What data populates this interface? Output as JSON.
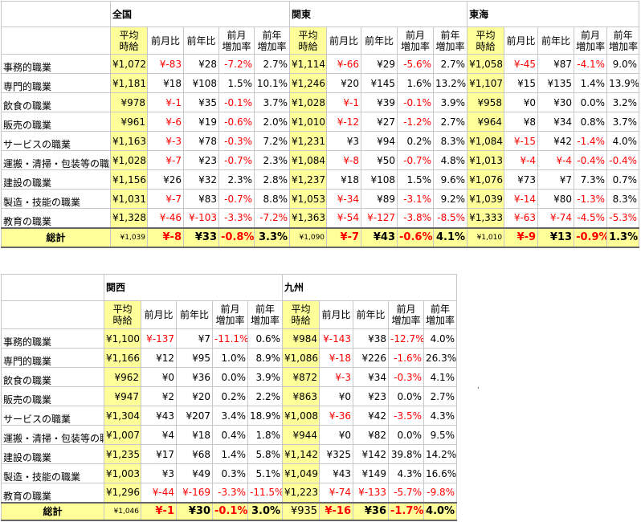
{
  "colors": {
    "highlight": "#ffff99",
    "negative": "#ff0000",
    "grid": "#c8c8c8"
  },
  "column_headers": {
    "avg": [
      "平均",
      "時給"
    ],
    "mom": "前月比",
    "yoy": "前年比",
    "mom_rate": [
      "前月",
      "増加率"
    ],
    "yoy_rate": [
      "前年",
      "増加率"
    ]
  },
  "categories": [
    "事務的職業",
    "専門的職業",
    "飲食の職業",
    "販売の職業",
    "サービスの職業",
    "運搬・清掃・包装等の職業",
    "建設の職業",
    "製造・技能の職業",
    "教育の職業"
  ],
  "total_label": "総計",
  "top_table": {
    "regions": [
      {
        "name": "全国",
        "rows": [
          [
            "¥1,072",
            "¥-83",
            "¥28",
            "-7.2%",
            "2.7%"
          ],
          [
            "¥1,181",
            "¥18",
            "¥108",
            "1.5%",
            "10.1%"
          ],
          [
            "¥978",
            "¥-1",
            "¥35",
            "-0.1%",
            "3.7%"
          ],
          [
            "¥961",
            "¥-6",
            "¥19",
            "-0.6%",
            "2.0%"
          ],
          [
            "¥1,163",
            "¥-3",
            "¥78",
            "-0.3%",
            "7.2%"
          ],
          [
            "¥1,028",
            "¥-7",
            "¥23",
            "-0.7%",
            "2.3%"
          ],
          [
            "¥1,156",
            "¥26",
            "¥32",
            "2.3%",
            "2.8%"
          ],
          [
            "¥1,031",
            "¥-7",
            "¥83",
            "-0.7%",
            "8.8%"
          ],
          [
            "¥1,328",
            "¥-46",
            "¥-103",
            "-3.3%",
            "-7.2%"
          ]
        ],
        "total": [
          "¥1,039",
          "¥-8",
          "¥33",
          "-0.8%",
          "3.3%"
        ]
      },
      {
        "name": "関東",
        "rows": [
          [
            "¥1,114",
            "¥-66",
            "¥29",
            "-5.6%",
            "2.7%"
          ],
          [
            "¥1,246",
            "¥20",
            "¥145",
            "1.6%",
            "13.2%"
          ],
          [
            "¥1,028",
            "¥-1",
            "¥39",
            "-0.1%",
            "3.9%"
          ],
          [
            "¥1,010",
            "¥-12",
            "¥27",
            "-1.2%",
            "2.7%"
          ],
          [
            "¥1,231",
            "¥3",
            "¥94",
            "0.2%",
            "8.3%"
          ],
          [
            "¥1,084",
            "¥-8",
            "¥50",
            "-0.7%",
            "4.8%"
          ],
          [
            "¥1,237",
            "¥18",
            "¥108",
            "1.5%",
            "9.6%"
          ],
          [
            "¥1,053",
            "¥-34",
            "¥89",
            "-3.1%",
            "9.2%"
          ],
          [
            "¥1,363",
            "¥-54",
            "¥-127",
            "-3.8%",
            "-8.5%"
          ]
        ],
        "total": [
          "¥1,090",
          "¥-7",
          "¥43",
          "-0.6%",
          "4.1%"
        ]
      },
      {
        "name": "東海",
        "rows": [
          [
            "¥1,058",
            "¥-45",
            "¥87",
            "-4.1%",
            "9.0%"
          ],
          [
            "¥1,107",
            "¥15",
            "¥135",
            "1.4%",
            "13.9%"
          ],
          [
            "¥958",
            "¥0",
            "¥30",
            "0.0%",
            "3.2%"
          ],
          [
            "¥964",
            "¥8",
            "¥34",
            "0.8%",
            "3.7%"
          ],
          [
            "¥1,084",
            "¥-15",
            "¥42",
            "-1.4%",
            "4.0%"
          ],
          [
            "¥1,013",
            "¥-4",
            "¥-4",
            "-0.4%",
            "-0.4%"
          ],
          [
            "¥1,076",
            "¥73",
            "¥7",
            "7.3%",
            "0.7%"
          ],
          [
            "¥1,039",
            "¥-14",
            "¥80",
            "-1.3%",
            "8.3%"
          ],
          [
            "¥1,333",
            "¥-63",
            "¥-74",
            "-4.5%",
            "-5.3%"
          ]
        ],
        "total": [
          "¥1,010",
          "¥-9",
          "¥13",
          "-0.9%",
          "1.3%"
        ]
      }
    ]
  },
  "bottom_table": {
    "regions": [
      {
        "name": "関西",
        "rows": [
          [
            "¥1,100",
            "¥-137",
            "¥7",
            "-11.1%",
            "0.6%"
          ],
          [
            "¥1,166",
            "¥12",
            "¥95",
            "1.0%",
            "8.9%"
          ],
          [
            "¥962",
            "¥0",
            "¥36",
            "0.0%",
            "3.9%"
          ],
          [
            "¥947",
            "¥2",
            "¥20",
            "0.2%",
            "2.2%"
          ],
          [
            "¥1,304",
            "¥43",
            "¥207",
            "3.4%",
            "18.9%"
          ],
          [
            "¥1,007",
            "¥4",
            "¥18",
            "0.4%",
            "1.8%"
          ],
          [
            "¥1,235",
            "¥17",
            "¥68",
            "1.4%",
            "5.8%"
          ],
          [
            "¥1,003",
            "¥3",
            "¥49",
            "0.3%",
            "5.1%"
          ],
          [
            "¥1,296",
            "¥-44",
            "¥-169",
            "-3.3%",
            "-11.5%"
          ]
        ],
        "total": [
          "¥1,046",
          "¥-1",
          "¥30",
          "-0.1%",
          "3.0%"
        ]
      },
      {
        "name": "九州",
        "rows": [
          [
            "¥984",
            "¥-143",
            "¥38",
            "-12.7%",
            "4.0%"
          ],
          [
            "¥1,086",
            "¥-18",
            "¥226",
            "-1.6%",
            "26.3%"
          ],
          [
            "¥872",
            "¥-3",
            "¥34",
            "-0.3%",
            "4.1%"
          ],
          [
            "¥863",
            "¥0",
            "¥23",
            "0.0%",
            "2.7%"
          ],
          [
            "¥1,008",
            "¥-36",
            "¥42",
            "-3.5%",
            "4.3%"
          ],
          [
            "¥944",
            "¥0",
            "¥82",
            "0.0%",
            "9.5%"
          ],
          [
            "¥1,142",
            "¥325",
            "¥142",
            "39.8%",
            "14.2%"
          ],
          [
            "¥1,049",
            "¥43",
            "¥149",
            "4.3%",
            "16.6%"
          ],
          [
            "¥1,223",
            "¥-74",
            "¥-133",
            "-5.7%",
            "-9.8%"
          ]
        ],
        "total": [
          "¥935",
          "¥-16",
          "¥36",
          "-1.7%",
          "4.0%"
        ]
      }
    ]
  },
  "stray_mark": ","
}
